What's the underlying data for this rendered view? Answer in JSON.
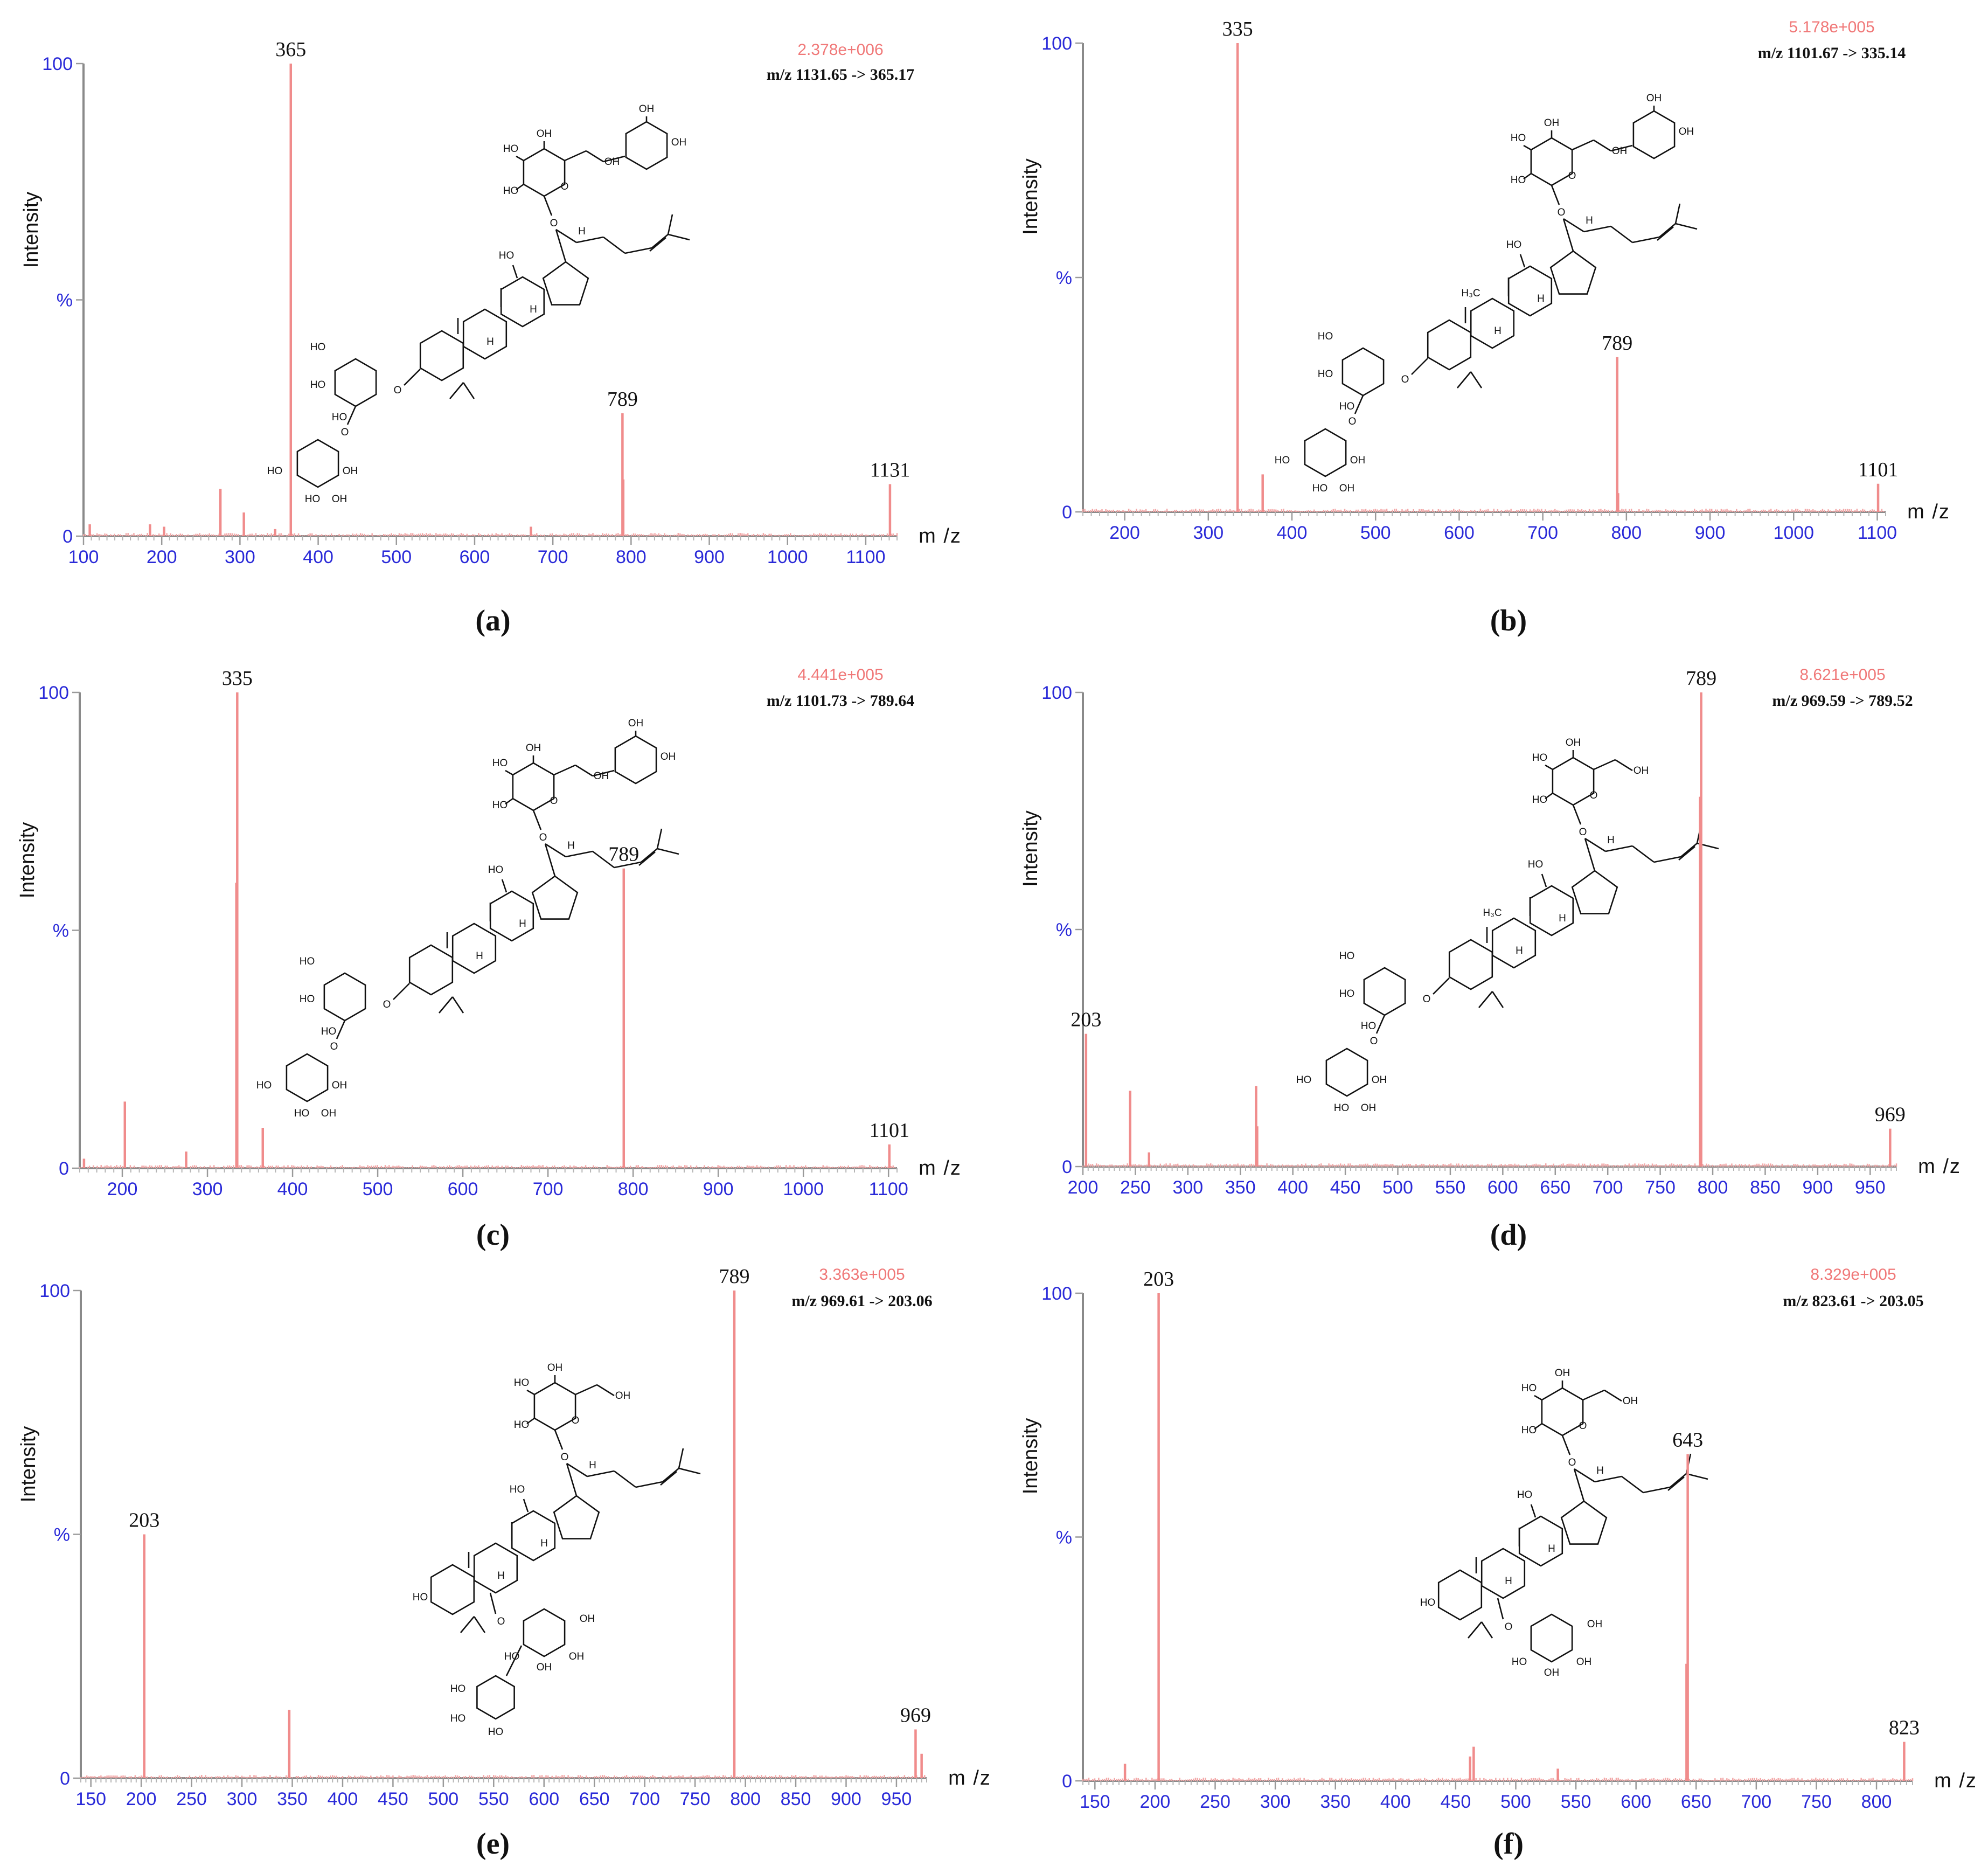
{
  "figure": {
    "colors": {
      "peak": "#f08c8c",
      "axis_ticks": "#2a2ad8",
      "intensity_label": "#f07878"
    }
  },
  "chart_data": [
    {
      "type": "bar",
      "panel": "(a)",
      "intensity": "2.378e+006",
      "transition": "m/z 1131.65 -> 365.17",
      "xlabel": "m/z",
      "ylabel": "Intensity",
      "y_ticks": [
        "0",
        "%",
        "100"
      ],
      "xlim": [
        100,
        1140
      ],
      "ylim": [
        0,
        100
      ],
      "x_ticks": [
        100,
        200,
        300,
        400,
        500,
        600,
        700,
        800,
        900,
        1000,
        1100
      ],
      "peaks": [
        {
          "mz": 365,
          "rel": 100,
          "label": "365"
        },
        {
          "mz": 789,
          "rel": 26,
          "label": "789"
        },
        {
          "mz": 1131,
          "rel": 11,
          "label": "1131"
        },
        {
          "mz": 275,
          "rel": 10,
          "label": ""
        },
        {
          "mz": 305,
          "rel": 5,
          "label": ""
        },
        {
          "mz": 790,
          "rel": 12,
          "label": ""
        },
        {
          "mz": 185,
          "rel": 2.5,
          "label": ""
        },
        {
          "mz": 203,
          "rel": 2,
          "label": ""
        },
        {
          "mz": 108,
          "rel": 2.5,
          "label": ""
        },
        {
          "mz": 672,
          "rel": 2,
          "label": ""
        },
        {
          "mz": 345,
          "rel": 1.5,
          "label": ""
        }
      ]
    },
    {
      "type": "bar",
      "panel": "(b)",
      "intensity": "5.178e+005",
      "transition": "m/z 1101.67 -> 335.14",
      "xlabel": "m/z",
      "ylabel": "Intensity",
      "y_ticks": [
        "0",
        "%",
        "100"
      ],
      "xlim": [
        150,
        1110
      ],
      "ylim": [
        0,
        100
      ],
      "x_ticks": [
        200,
        300,
        400,
        500,
        600,
        700,
        800,
        900,
        1000,
        1100
      ],
      "peaks": [
        {
          "mz": 335,
          "rel": 100,
          "label": "335"
        },
        {
          "mz": 789,
          "rel": 33,
          "label": "789"
        },
        {
          "mz": 1101,
          "rel": 6,
          "label": "1101"
        },
        {
          "mz": 365,
          "rel": 8,
          "label": ""
        },
        {
          "mz": 790,
          "rel": 4,
          "label": ""
        }
      ]
    },
    {
      "type": "bar",
      "panel": "(c)",
      "intensity": "4.441e+005",
      "transition": "m/z 1101.73 -> 789.64",
      "xlabel": "m/z",
      "ylabel": "Intensity",
      "y_ticks": [
        "0",
        "%",
        "100"
      ],
      "xlim": [
        150,
        1110
      ],
      "ylim": [
        0,
        100
      ],
      "x_ticks": [
        200,
        300,
        400,
        500,
        600,
        700,
        800,
        900,
        1000,
        1100
      ],
      "peaks": [
        {
          "mz": 335,
          "rel": 100,
          "label": "335"
        },
        {
          "mz": 789,
          "rel": 63,
          "label": "789"
        },
        {
          "mz": 1101,
          "rel": 5,
          "label": "1101"
        },
        {
          "mz": 203,
          "rel": 14,
          "label": ""
        },
        {
          "mz": 365,
          "rel": 8.5,
          "label": ""
        },
        {
          "mz": 275,
          "rel": 3.5,
          "label": ""
        },
        {
          "mz": 334,
          "rel": 60,
          "label": ""
        },
        {
          "mz": 155,
          "rel": 2,
          "label": ""
        }
      ]
    },
    {
      "type": "bar",
      "panel": "(d)",
      "intensity": "8.621e+005",
      "transition": "m/z 969.59 -> 789.52",
      "xlabel": "m/z",
      "ylabel": "Intensity",
      "y_ticks": [
        "0",
        "%",
        "100"
      ],
      "xlim": [
        200,
        975
      ],
      "ylim": [
        0,
        100
      ],
      "x_ticks": [
        200,
        250,
        300,
        350,
        400,
        450,
        500,
        550,
        600,
        650,
        700,
        750,
        800,
        850,
        900,
        950
      ],
      "peaks": [
        {
          "mz": 789,
          "rel": 100,
          "label": "789"
        },
        {
          "mz": 203,
          "rel": 28,
          "label": "203"
        },
        {
          "mz": 969,
          "rel": 8,
          "label": "969"
        },
        {
          "mz": 245,
          "rel": 16,
          "label": ""
        },
        {
          "mz": 365,
          "rel": 17,
          "label": ""
        },
        {
          "mz": 366,
          "rel": 8.5,
          "label": ""
        },
        {
          "mz": 263,
          "rel": 3,
          "label": ""
        },
        {
          "mz": 788,
          "rel": 78,
          "label": ""
        }
      ]
    },
    {
      "type": "bar",
      "panel": "(e)",
      "intensity": "3.363e+005",
      "transition": "m/z 969.61 -> 203.06",
      "xlabel": "m/z",
      "ylabel": "Intensity",
      "y_ticks": [
        "0",
        "%",
        "100"
      ],
      "xlim": [
        140,
        980
      ],
      "ylim": [
        0,
        100
      ],
      "x_ticks": [
        150,
        200,
        250,
        300,
        350,
        400,
        450,
        500,
        550,
        600,
        650,
        700,
        750,
        800,
        850,
        900,
        950
      ],
      "peaks": [
        {
          "mz": 789,
          "rel": 100,
          "label": "789"
        },
        {
          "mz": 203,
          "rel": 50,
          "label": "203"
        },
        {
          "mz": 969,
          "rel": 10,
          "label": "969"
        },
        {
          "mz": 347,
          "rel": 14,
          "label": ""
        },
        {
          "mz": 975,
          "rel": 5,
          "label": ""
        }
      ]
    },
    {
      "type": "bar",
      "panel": "(f)",
      "intensity": "8.329e+005",
      "transition": "m/z 823.61 -> 203.05",
      "xlabel": "m/z",
      "ylabel": "Intensity",
      "y_ticks": [
        "0",
        "%",
        "100"
      ],
      "xlim": [
        140,
        830
      ],
      "ylim": [
        0,
        100
      ],
      "x_ticks": [
        150,
        200,
        250,
        300,
        350,
        400,
        450,
        500,
        550,
        600,
        650,
        700,
        750,
        800
      ],
      "peaks": [
        {
          "mz": 203,
          "rel": 100,
          "label": "203"
        },
        {
          "mz": 643,
          "rel": 67,
          "label": "643"
        },
        {
          "mz": 823,
          "rel": 8,
          "label": "823"
        },
        {
          "mz": 175,
          "rel": 3.5,
          "label": ""
        },
        {
          "mz": 465,
          "rel": 7,
          "label": ""
        },
        {
          "mz": 462,
          "rel": 5,
          "label": ""
        },
        {
          "mz": 535,
          "rel": 2.5,
          "label": ""
        },
        {
          "mz": 642,
          "rel": 24,
          "label": ""
        }
      ]
    }
  ],
  "structure_labels": {
    "hydroxyl": "OH",
    "hydroxyl_left": "HO",
    "oxygen": "O",
    "hydrogen": "H",
    "methyl": "H₃C"
  }
}
